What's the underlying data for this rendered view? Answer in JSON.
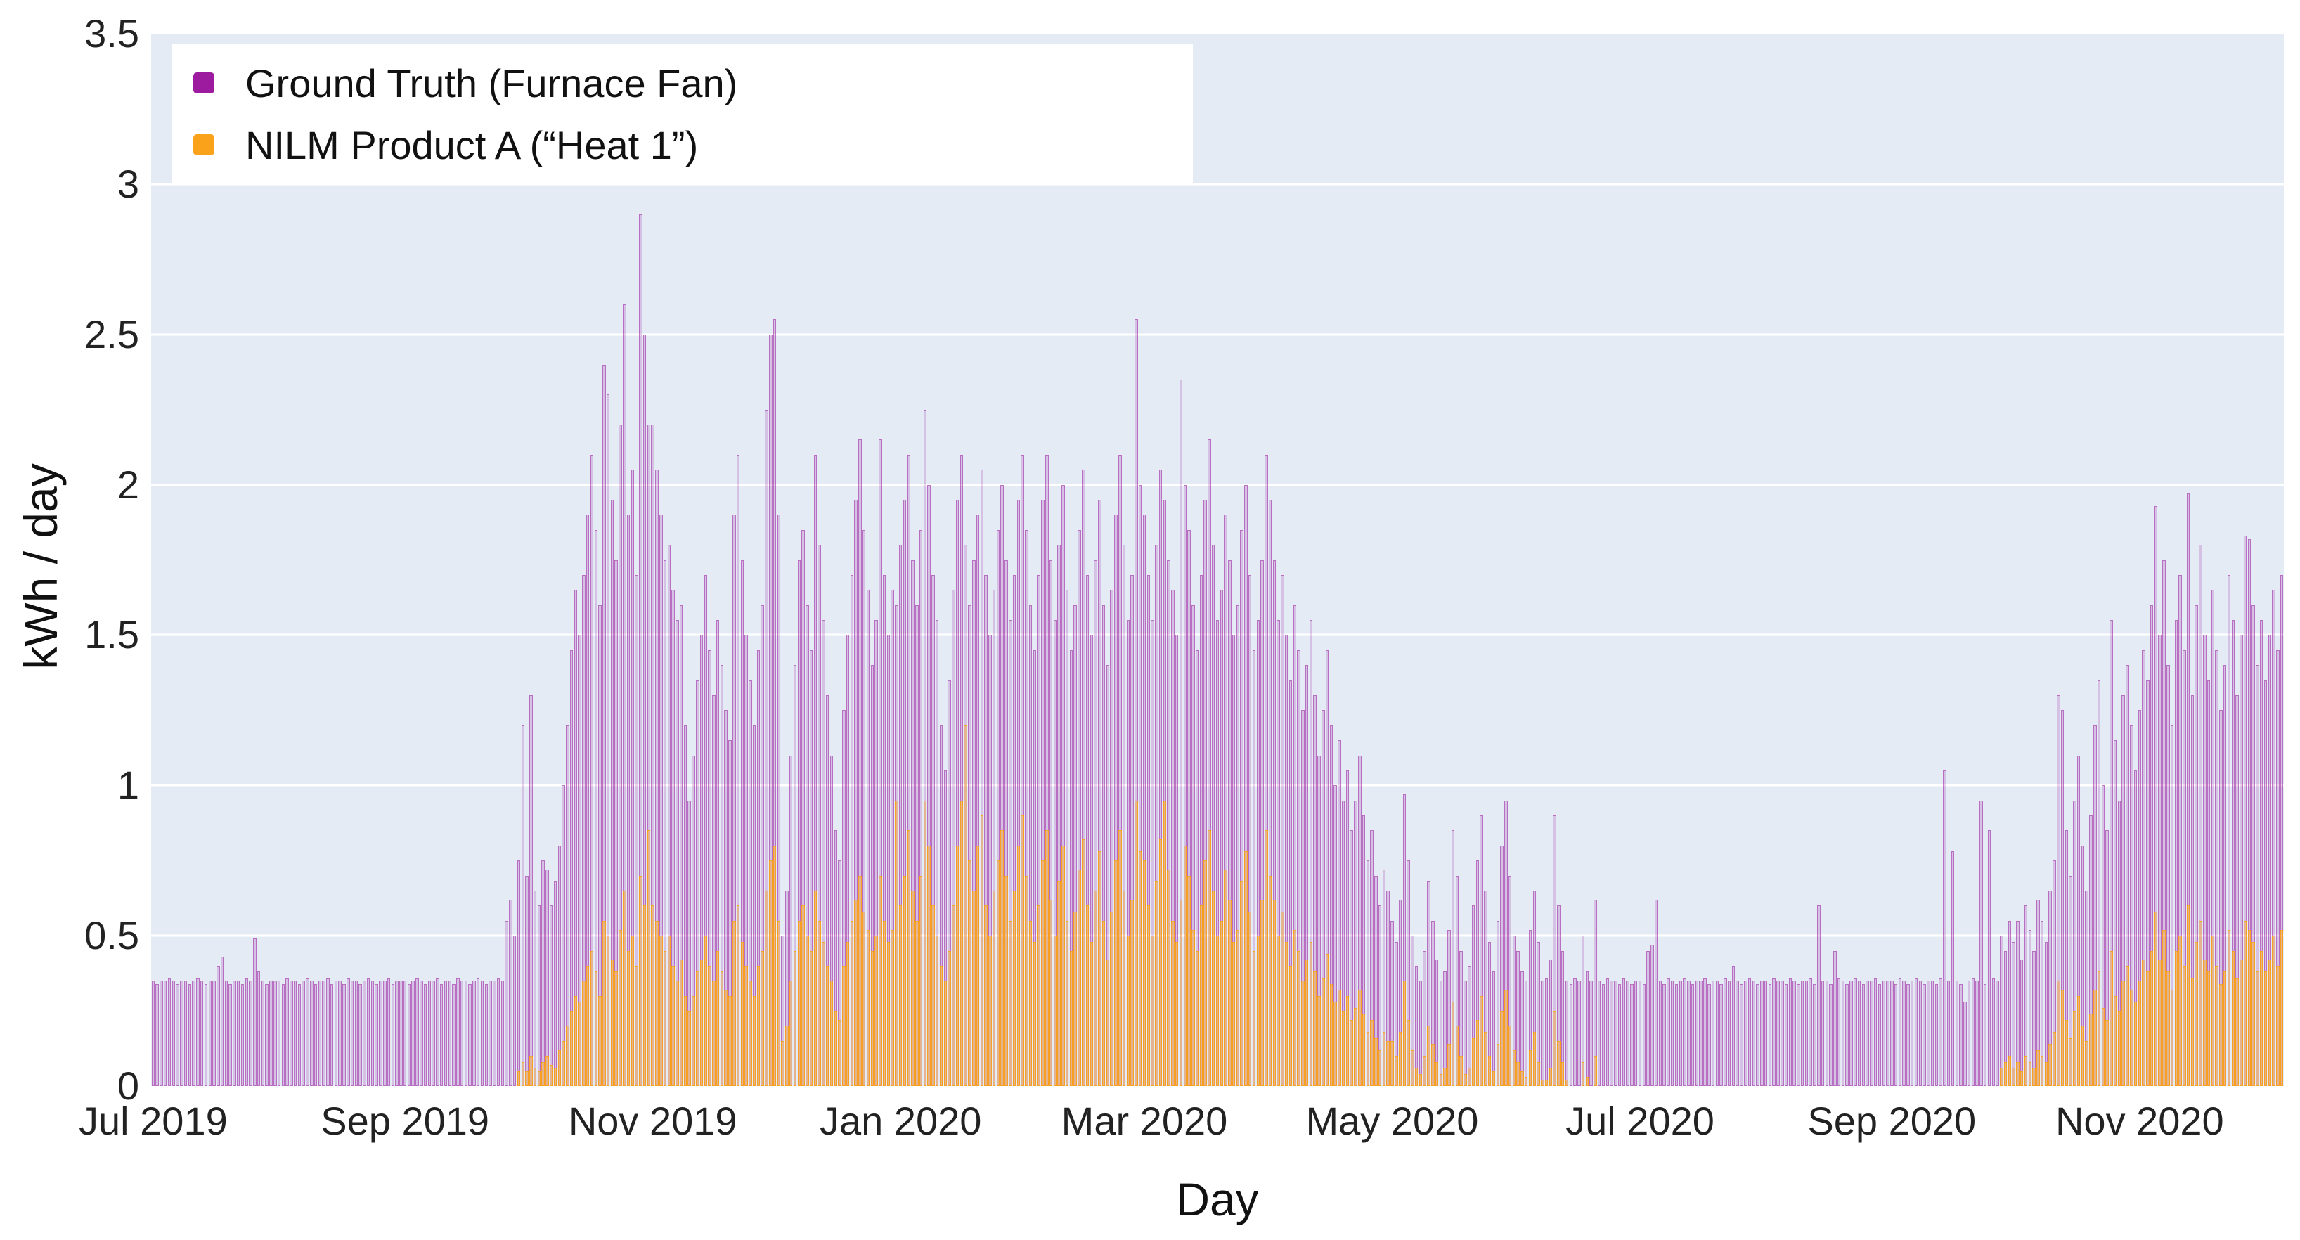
{
  "chart_data": {
    "type": "bar",
    "title": "",
    "xlabel": "Day",
    "ylabel": "kWh / day",
    "ylim": [
      0,
      3.5
    ],
    "grid": "on",
    "legend_position": "top-left",
    "x_start": "2019-07-01",
    "x_unit": "day",
    "y_ticks": [
      {
        "label": "0",
        "value": 0
      },
      {
        "label": "0.5",
        "value": 0.5
      },
      {
        "label": "1",
        "value": 1
      },
      {
        "label": "1.5",
        "value": 1.5
      },
      {
        "label": "2",
        "value": 2
      },
      {
        "label": "2.5",
        "value": 2.5
      },
      {
        "label": "3",
        "value": 3
      },
      {
        "label": "3.5",
        "value": 3.5
      }
    ],
    "x_ticks": [
      {
        "label": "Jul 2019",
        "day": 0
      },
      {
        "label": "Sep 2019",
        "day": 62
      },
      {
        "label": "Nov 2019",
        "day": 123
      },
      {
        "label": "Jan 2020",
        "day": 184
      },
      {
        "label": "Mar 2020",
        "day": 244
      },
      {
        "label": "May 2020",
        "day": 305
      },
      {
        "label": "Jul 2020",
        "day": 366
      },
      {
        "label": "Sep 2020",
        "day": 428
      },
      {
        "label": "Nov 2020",
        "day": 489
      }
    ],
    "series": [
      {
        "name": "Ground Truth (Furnace Fan)",
        "color": "#9c1b9e",
        "values": [
          0.35,
          0.34,
          0.35,
          0.35,
          0.36,
          0.35,
          0.34,
          0.35,
          0.35,
          0.34,
          0.35,
          0.36,
          0.35,
          0.34,
          0.35,
          0.35,
          0.4,
          0.43,
          0.35,
          0.34,
          0.35,
          0.35,
          0.34,
          0.36,
          0.35,
          0.49,
          0.38,
          0.35,
          0.34,
          0.35,
          0.35,
          0.35,
          0.34,
          0.36,
          0.35,
          0.35,
          0.34,
          0.35,
          0.36,
          0.35,
          0.34,
          0.35,
          0.35,
          0.36,
          0.34,
          0.35,
          0.35,
          0.34,
          0.36,
          0.35,
          0.35,
          0.34,
          0.35,
          0.36,
          0.35,
          0.34,
          0.35,
          0.35,
          0.36,
          0.34,
          0.35,
          0.35,
          0.35,
          0.34,
          0.35,
          0.36,
          0.35,
          0.34,
          0.35,
          0.35,
          0.36,
          0.34,
          0.35,
          0.35,
          0.34,
          0.36,
          0.35,
          0.35,
          0.34,
          0.35,
          0.36,
          0.35,
          0.34,
          0.35,
          0.35,
          0.36,
          0.35,
          0.55,
          0.62,
          0.5,
          0.75,
          1.2,
          0.7,
          1.3,
          0.65,
          0.6,
          0.75,
          0.72,
          0.6,
          0.68,
          0.8,
          1.0,
          1.2,
          1.45,
          1.65,
          1.5,
          1.7,
          1.9,
          2.1,
          1.85,
          1.6,
          2.4,
          2.3,
          1.95,
          1.75,
          2.2,
          2.6,
          1.9,
          2.05,
          1.7,
          2.9,
          2.5,
          2.2,
          2.2,
          2.05,
          1.9,
          1.75,
          1.8,
          1.65,
          1.55,
          1.6,
          1.2,
          0.95,
          1.1,
          1.35,
          1.5,
          1.7,
          1.45,
          1.3,
          1.55,
          1.4,
          1.25,
          1.15,
          1.9,
          2.1,
          1.75,
          1.5,
          1.35,
          1.2,
          1.45,
          1.6,
          2.25,
          2.5,
          2.55,
          1.9,
          0.5,
          0.65,
          1.1,
          1.4,
          1.75,
          1.85,
          1.6,
          1.45,
          2.1,
          1.8,
          1.55,
          1.3,
          1.1,
          0.85,
          0.75,
          1.25,
          1.5,
          1.7,
          1.95,
          2.15,
          1.85,
          1.65,
          1.4,
          1.55,
          2.15,
          1.7,
          1.5,
          1.65,
          1.6,
          1.8,
          1.95,
          2.1,
          1.75,
          1.6,
          1.85,
          2.25,
          2.0,
          1.7,
          1.55,
          1.2,
          1.05,
          1.35,
          1.65,
          1.95,
          2.1,
          1.8,
          1.6,
          1.75,
          1.9,
          2.05,
          1.7,
          1.5,
          1.65,
          1.85,
          2.0,
          1.75,
          1.55,
          1.7,
          1.95,
          2.1,
          1.85,
          1.6,
          1.45,
          1.7,
          1.95,
          2.1,
          1.75,
          1.55,
          1.8,
          2.0,
          1.65,
          1.45,
          1.6,
          1.85,
          2.05,
          1.7,
          1.5,
          1.75,
          1.95,
          1.6,
          1.4,
          1.65,
          1.9,
          2.1,
          1.8,
          1.55,
          1.7,
          2.55,
          2.0,
          1.9,
          1.7,
          1.55,
          1.8,
          2.05,
          1.95,
          1.75,
          1.65,
          1.5,
          2.35,
          2.0,
          1.85,
          1.6,
          1.45,
          1.7,
          1.95,
          2.15,
          1.8,
          1.55,
          1.65,
          1.9,
          1.75,
          1.5,
          1.6,
          1.85,
          2.0,
          1.7,
          1.45,
          1.55,
          1.75,
          2.1,
          1.95,
          1.75,
          1.55,
          1.7,
          1.5,
          1.35,
          1.6,
          1.45,
          1.25,
          1.4,
          1.55,
          1.3,
          1.1,
          1.25,
          1.45,
          1.2,
          1.0,
          1.15,
          0.95,
          1.05,
          0.85,
          0.95,
          1.1,
          0.9,
          0.75,
          0.85,
          0.7,
          0.6,
          0.72,
          0.65,
          0.55,
          0.48,
          0.62,
          0.97,
          0.75,
          0.5,
          0.4,
          0.35,
          0.45,
          0.68,
          0.55,
          0.42,
          0.35,
          0.38,
          0.52,
          0.85,
          0.7,
          0.45,
          0.35,
          0.4,
          0.6,
          0.75,
          0.9,
          0.65,
          0.48,
          0.38,
          0.55,
          0.8,
          0.95,
          0.7,
          0.5,
          0.45,
          0.38,
          0.35,
          0.52,
          0.65,
          0.48,
          0.35,
          0.36,
          0.42,
          0.9,
          0.6,
          0.45,
          0.35,
          0.34,
          0.36,
          0.35,
          0.5,
          0.38,
          0.35,
          0.62,
          0.35,
          0.34,
          0.36,
          0.35,
          0.35,
          0.34,
          0.36,
          0.35,
          0.34,
          0.35,
          0.35,
          0.34,
          0.45,
          0.47,
          0.62,
          0.35,
          0.34,
          0.36,
          0.35,
          0.34,
          0.35,
          0.36,
          0.35,
          0.34,
          0.35,
          0.35,
          0.36,
          0.34,
          0.35,
          0.35,
          0.34,
          0.36,
          0.35,
          0.4,
          0.35,
          0.34,
          0.35,
          0.36,
          0.35,
          0.34,
          0.35,
          0.35,
          0.34,
          0.36,
          0.35,
          0.35,
          0.34,
          0.36,
          0.35,
          0.34,
          0.35,
          0.35,
          0.36,
          0.34,
          0.6,
          0.35,
          0.35,
          0.34,
          0.45,
          0.36,
          0.35,
          0.34,
          0.35,
          0.36,
          0.35,
          0.34,
          0.35,
          0.35,
          0.36,
          0.34,
          0.35,
          0.35,
          0.35,
          0.34,
          0.36,
          0.35,
          0.34,
          0.35,
          0.36,
          0.35,
          0.34,
          0.35,
          0.35,
          0.34,
          0.36,
          1.05,
          0.35,
          0.78,
          0.35,
          0.34,
          0.28,
          0.35,
          0.36,
          0.35,
          0.95,
          0.34,
          0.85,
          0.36,
          0.35,
          0.5,
          0.45,
          0.55,
          0.48,
          0.55,
          0.42,
          0.6,
          0.52,
          0.45,
          0.62,
          0.55,
          0.48,
          0.65,
          0.75,
          1.3,
          1.25,
          0.85,
          0.7,
          0.95,
          1.1,
          0.8,
          0.65,
          0.9,
          1.2,
          1.35,
          1.0,
          0.85,
          1.55,
          1.15,
          0.95,
          1.3,
          1.4,
          1.2,
          1.05,
          1.25,
          1.45,
          1.35,
          1.6,
          1.93,
          1.5,
          1.75,
          1.4,
          1.2,
          1.55,
          1.7,
          1.45,
          1.97,
          1.3,
          1.6,
          1.8,
          1.5,
          1.35,
          1.65,
          1.45,
          1.25,
          1.4,
          1.7,
          1.55,
          1.3,
          1.5,
          1.83,
          1.82,
          1.6,
          1.4,
          1.55,
          1.35,
          1.5,
          1.65,
          1.45,
          1.7
        ]
      },
      {
        "name": "NILM Product A (“Heat 1”)",
        "color": "#f9a21a",
        "values": [
          0,
          0,
          0,
          0,
          0,
          0,
          0,
          0,
          0,
          0,
          0,
          0,
          0,
          0,
          0,
          0,
          0,
          0,
          0,
          0,
          0,
          0,
          0,
          0,
          0,
          0,
          0,
          0,
          0,
          0,
          0,
          0,
          0,
          0,
          0,
          0,
          0,
          0,
          0,
          0,
          0,
          0,
          0,
          0,
          0,
          0,
          0,
          0,
          0,
          0,
          0,
          0,
          0,
          0,
          0,
          0,
          0,
          0,
          0,
          0,
          0,
          0,
          0,
          0,
          0,
          0,
          0,
          0,
          0,
          0,
          0,
          0,
          0,
          0,
          0,
          0,
          0,
          0,
          0,
          0,
          0,
          0,
          0,
          0,
          0,
          0,
          0,
          0,
          0,
          0,
          0.05,
          0.08,
          0.05,
          0.1,
          0.06,
          0.05,
          0.08,
          0.1,
          0.07,
          0.06,
          0.12,
          0.15,
          0.2,
          0.25,
          0.3,
          0.28,
          0.35,
          0.4,
          0.45,
          0.38,
          0.3,
          0.55,
          0.5,
          0.42,
          0.38,
          0.52,
          0.65,
          0.45,
          0.5,
          0.4,
          0.7,
          0.6,
          0.85,
          0.6,
          0.55,
          0.5,
          0.45,
          0.5,
          0.4,
          0.35,
          0.42,
          0.3,
          0.25,
          0.3,
          0.38,
          0.42,
          0.5,
          0.4,
          0.35,
          0.45,
          0.38,
          0.32,
          0.3,
          0.55,
          0.6,
          0.48,
          0.4,
          0.35,
          0.3,
          0.4,
          0.45,
          0.65,
          0.75,
          0.8,
          0.55,
          0.15,
          0.2,
          0.35,
          0.45,
          0.55,
          0.6,
          0.5,
          0.45,
          0.65,
          0.55,
          0.48,
          0.4,
          0.35,
          0.25,
          0.22,
          0.4,
          0.48,
          0.55,
          0.62,
          0.7,
          0.58,
          0.52,
          0.45,
          0.5,
          0.7,
          0.55,
          0.48,
          0.52,
          0.95,
          0.6,
          0.7,
          0.85,
          0.65,
          0.55,
          0.7,
          0.95,
          0.8,
          0.6,
          0.5,
          0.4,
          0.35,
          0.45,
          0.6,
          0.8,
          0.95,
          1.2,
          0.75,
          0.65,
          0.8,
          0.9,
          0.6,
          0.5,
          0.65,
          0.75,
          0.85,
          0.7,
          0.55,
          0.65,
          0.8,
          0.9,
          0.7,
          0.55,
          0.48,
          0.6,
          0.75,
          0.85,
          0.62,
          0.5,
          0.68,
          0.8,
          0.55,
          0.45,
          0.58,
          0.72,
          0.82,
          0.6,
          0.48,
          0.65,
          0.78,
          0.55,
          0.42,
          0.58,
          0.75,
          0.85,
          0.65,
          0.5,
          0.62,
          0.95,
          0.78,
          0.75,
          0.6,
          0.5,
          0.68,
          0.82,
          0.95,
          0.72,
          0.55,
          0.48,
          0.62,
          0.8,
          0.7,
          0.52,
          0.45,
          0.6,
          0.75,
          0.85,
          0.65,
          0.5,
          0.55,
          0.72,
          0.62,
          0.48,
          0.52,
          0.68,
          0.78,
          0.58,
          0.45,
          0.5,
          0.62,
          0.85,
          0.7,
          0.62,
          0.5,
          0.58,
          0.48,
          0.4,
          0.52,
          0.45,
          0.35,
          0.42,
          0.48,
          0.38,
          0.3,
          0.36,
          0.44,
          0.34,
          0.28,
          0.32,
          0.25,
          0.3,
          0.22,
          0.26,
          0.32,
          0.24,
          0.18,
          0.22,
          0.16,
          0.12,
          0.18,
          0.15,
          0.15,
          0.1,
          0.18,
          0.35,
          0.22,
          0.12,
          0.06,
          0.04,
          0.1,
          0.2,
          0.14,
          0.08,
          0.04,
          0.06,
          0.14,
          0.28,
          0.2,
          0.1,
          0.04,
          0.06,
          0.16,
          0.22,
          0.3,
          0.18,
          0.1,
          0.05,
          0.14,
          0.25,
          0.32,
          0.2,
          0.12,
          0.08,
          0.05,
          0.03,
          0.12,
          0.18,
          0.08,
          0.02,
          0.02,
          0.06,
          0.25,
          0.15,
          0.08,
          0.02,
          0,
          0,
          0,
          0.08,
          0.03,
          0,
          0.1,
          0,
          0,
          0,
          0,
          0,
          0,
          0,
          0,
          0,
          0,
          0,
          0,
          0,
          0,
          0,
          0,
          0,
          0,
          0,
          0,
          0,
          0,
          0,
          0,
          0,
          0,
          0,
          0,
          0,
          0,
          0,
          0,
          0,
          0,
          0,
          0,
          0,
          0,
          0,
          0,
          0,
          0,
          0,
          0,
          0,
          0,
          0,
          0,
          0,
          0,
          0,
          0,
          0,
          0,
          0,
          0,
          0,
          0,
          0,
          0,
          0,
          0,
          0,
          0,
          0,
          0,
          0,
          0,
          0,
          0,
          0,
          0,
          0,
          0,
          0,
          0,
          0,
          0,
          0,
          0,
          0,
          0,
          0,
          0,
          0,
          0,
          0,
          0,
          0,
          0,
          0,
          0,
          0,
          0,
          0,
          0,
          0,
          0,
          0,
          0.06,
          0.08,
          0.1,
          0.06,
          0.08,
          0.05,
          0.1,
          0.08,
          0.06,
          0.12,
          0.1,
          0.08,
          0.14,
          0.18,
          0.35,
          0.32,
          0.22,
          0.16,
          0.25,
          0.3,
          0.2,
          0.15,
          0.24,
          0.32,
          0.38,
          0.26,
          0.22,
          0.45,
          0.3,
          0.25,
          0.35,
          0.4,
          0.32,
          0.28,
          0.35,
          0.42,
          0.38,
          0.45,
          0.58,
          0.42,
          0.52,
          0.38,
          0.32,
          0.45,
          0.5,
          0.4,
          0.6,
          0.36,
          0.48,
          0.55,
          0.42,
          0.38,
          0.5,
          0.4,
          0.34,
          0.38,
          0.52,
          0.45,
          0.36,
          0.42,
          0.55,
          0.52,
          0.48,
          0.38,
          0.45,
          0.38,
          0.42,
          0.5,
          0.4,
          0.52
        ]
      }
    ]
  }
}
